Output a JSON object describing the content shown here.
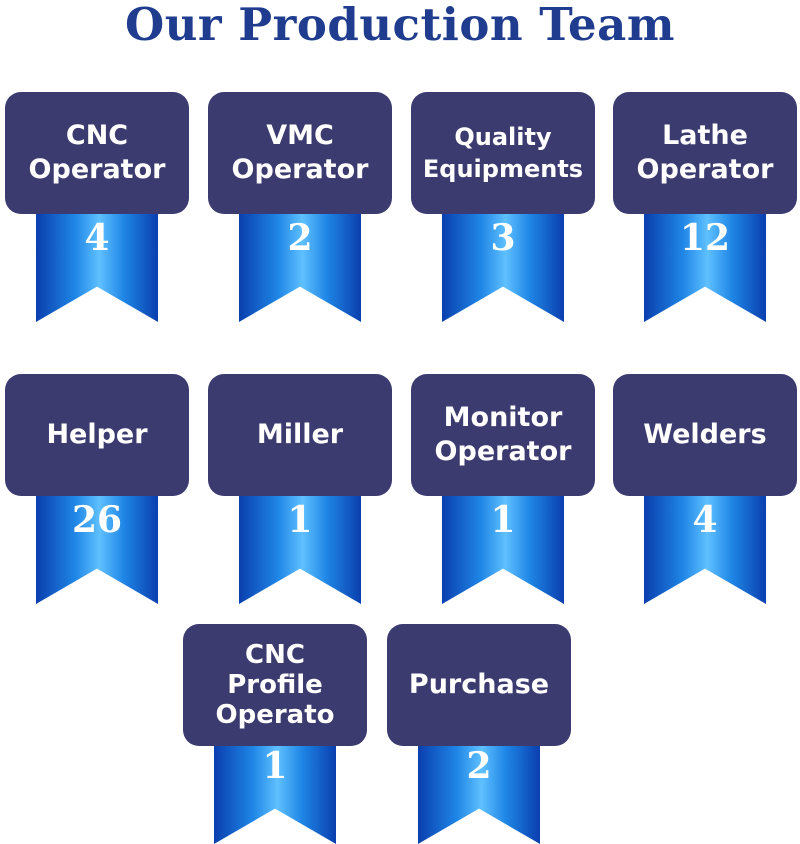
{
  "title": "Our Production Team",
  "badges": [
    {
      "label": "CNC\nOperator",
      "count": "4"
    },
    {
      "label": "VMC\nOperator",
      "count": "2"
    },
    {
      "label": "Quality\nEquipments",
      "count": "3"
    },
    {
      "label": "Lathe\nOperator",
      "count": "12"
    },
    {
      "label": "Helper",
      "count": "26"
    },
    {
      "label": "Miller",
      "count": "1"
    },
    {
      "label": "Monitor\nOperator",
      "count": "1"
    },
    {
      "label": "Welders",
      "count": "4"
    },
    {
      "label": "CNC\nProfile\nOperato",
      "count": "1"
    },
    {
      "label": "Purchase",
      "count": "2"
    }
  ],
  "colors": {
    "title": "#1f3c8f",
    "label_box": "#3c3b70",
    "ribbon_dark": "#0a3fae",
    "ribbon_light": "#5fc0ff"
  }
}
